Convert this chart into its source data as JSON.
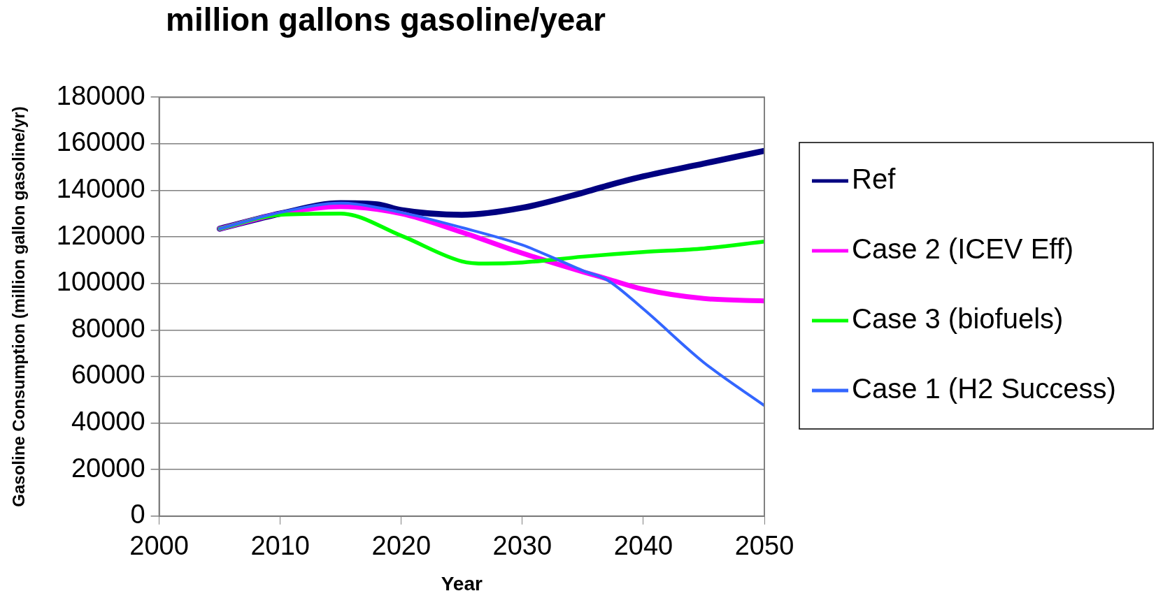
{
  "chart_data": {
    "type": "line",
    "title": "million gallons gasoline/year",
    "xlabel": "Year",
    "ylabel": "Gasoline Consumption (million gallon gasoline/yr)",
    "xlim": [
      2000,
      2050
    ],
    "xticks": [
      2000,
      2010,
      2020,
      2030,
      2040,
      2050
    ],
    "ylim": [
      0,
      180000
    ],
    "yticks": [
      0,
      20000,
      40000,
      60000,
      80000,
      100000,
      120000,
      140000,
      160000,
      180000
    ],
    "grid": "y",
    "legend": "right",
    "marker": "none",
    "line_style": "solid",
    "series": [
      {
        "name": "Ref",
        "color": "#000080",
        "x": [
          2005,
          2010,
          2015,
          2018,
          2020,
          2025,
          2030,
          2035,
          2037,
          2040,
          2045,
          2050
        ],
        "values": [
          123500,
          130000,
          134500,
          134000,
          131500,
          129500,
          132500,
          139000,
          142000,
          146000,
          151500,
          157000
        ]
      },
      {
        "name": "Case 2 (ICEV Eff)",
        "color": "#ff00ff",
        "x": [
          2005,
          2010,
          2015,
          2020,
          2025,
          2030,
          2035,
          2037,
          2040,
          2045,
          2050
        ],
        "values": [
          123500,
          130000,
          133000,
          130000,
          122000,
          113000,
          105000,
          102000,
          97500,
          93500,
          92500
        ]
      },
      {
        "name": "Case 3 (biofuels)",
        "color": "#00ff00",
        "x": [
          2005,
          2010,
          2015,
          2020,
          2025,
          2027,
          2030,
          2035,
          2040,
          2045,
          2050
        ],
        "values": [
          123500,
          129500,
          130000,
          120500,
          109500,
          108500,
          109000,
          111500,
          113500,
          115000,
          118000
        ]
      },
      {
        "name": "Case 1 (H2 Success)",
        "color": "#3366ff",
        "x": [
          2005,
          2010,
          2015,
          2020,
          2025,
          2030,
          2033,
          2035,
          2037,
          2040,
          2045,
          2050
        ],
        "values": [
          123500,
          130500,
          134500,
          130500,
          124000,
          116500,
          110000,
          105500,
          101500,
          89000,
          66000,
          47500
        ]
      }
    ]
  }
}
